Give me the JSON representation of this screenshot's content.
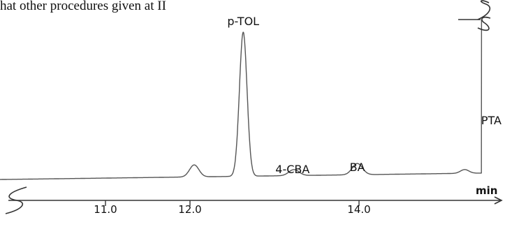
{
  "header_text": "hat other procedures given at II",
  "chart_data": {
    "type": "line",
    "title": "",
    "xlabel": "min",
    "ylabel": "",
    "x_ticks": [
      {
        "value": 11.0,
        "label": "11.0"
      },
      {
        "value": 12.0,
        "label": "12.0"
      },
      {
        "value": 14.0,
        "label": "14.0"
      }
    ],
    "xlim": [
      9.4,
      16.8
    ],
    "baseline": 0,
    "ylim": [
      0,
      100
    ],
    "peaks": [
      {
        "name": "",
        "rt": 12.05,
        "height": 8,
        "width": 0.055
      },
      {
        "name": "p-TOL",
        "rt": 12.63,
        "height": 96,
        "width": 0.045
      },
      {
        "name": "4-CBA",
        "rt": 13.23,
        "height": 4,
        "width": 0.06
      },
      {
        "name": "BA",
        "rt": 13.98,
        "height": 7.5,
        "width": 0.06
      },
      {
        "name": "",
        "rt": 15.25,
        "height": 2.5,
        "width": 0.05
      }
    ],
    "off_scale_peak": {
      "name": "PTA",
      "rt": 15.45
    }
  }
}
